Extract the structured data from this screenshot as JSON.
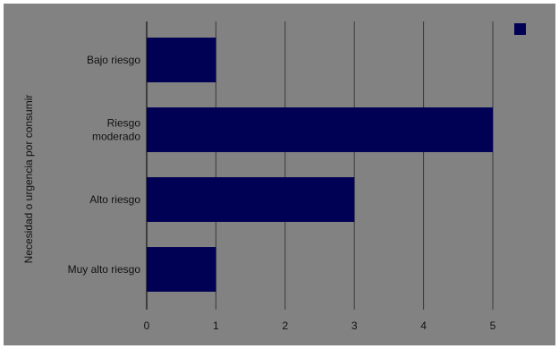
{
  "chart_data": {
    "type": "bar",
    "orientation": "horizontal",
    "categories": [
      "Bajo riesgo",
      "Riesgo moderado",
      "Alto riesgo",
      "Muy alto riesgo"
    ],
    "category_label_lines": [
      [
        "Bajo riesgo"
      ],
      [
        "Riesgo",
        "moderado"
      ],
      [
        "Alto riesgo"
      ],
      [
        "Muy alto riesgo"
      ]
    ],
    "series": [
      {
        "values": [
          1,
          5,
          3,
          1
        ]
      }
    ],
    "title": "",
    "xlabel": "",
    "ylabel": "Necesidad o urgencia por consumir",
    "xlim": [
      0,
      5
    ],
    "xticks": [
      0,
      1,
      2,
      3,
      4,
      5
    ],
    "grid": true,
    "legend_position": "top-right",
    "colors": {
      "background": "#828282",
      "bar": "#000055",
      "grid": "#3a3a3a",
      "text": "#111111"
    }
  }
}
